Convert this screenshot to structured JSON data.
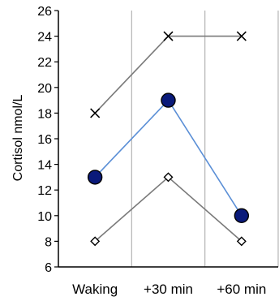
{
  "chart_data": {
    "type": "line",
    "categories": [
      "Waking",
      "+30 min",
      "+60 min"
    ],
    "ylabel": "Cortisol nmol/L",
    "xlabel": "",
    "ylim": [
      6,
      26
    ],
    "yticks": [
      6,
      8,
      10,
      12,
      14,
      16,
      18,
      20,
      22,
      24,
      26
    ],
    "grid": "vertical",
    "series": [
      {
        "marker": "cross",
        "line_color": "#7a7a7a",
        "marker_color": "#000000",
        "values": [
          18,
          24,
          24
        ]
      },
      {
        "marker": "filled-circle",
        "line_color": "#5b8fd6",
        "marker_color": "#0a1a7a",
        "values": [
          13,
          19,
          10
        ]
      },
      {
        "marker": "open-diamond",
        "line_color": "#7a7a7a",
        "marker_color": "#000000",
        "values": [
          8,
          13,
          8
        ]
      }
    ]
  }
}
